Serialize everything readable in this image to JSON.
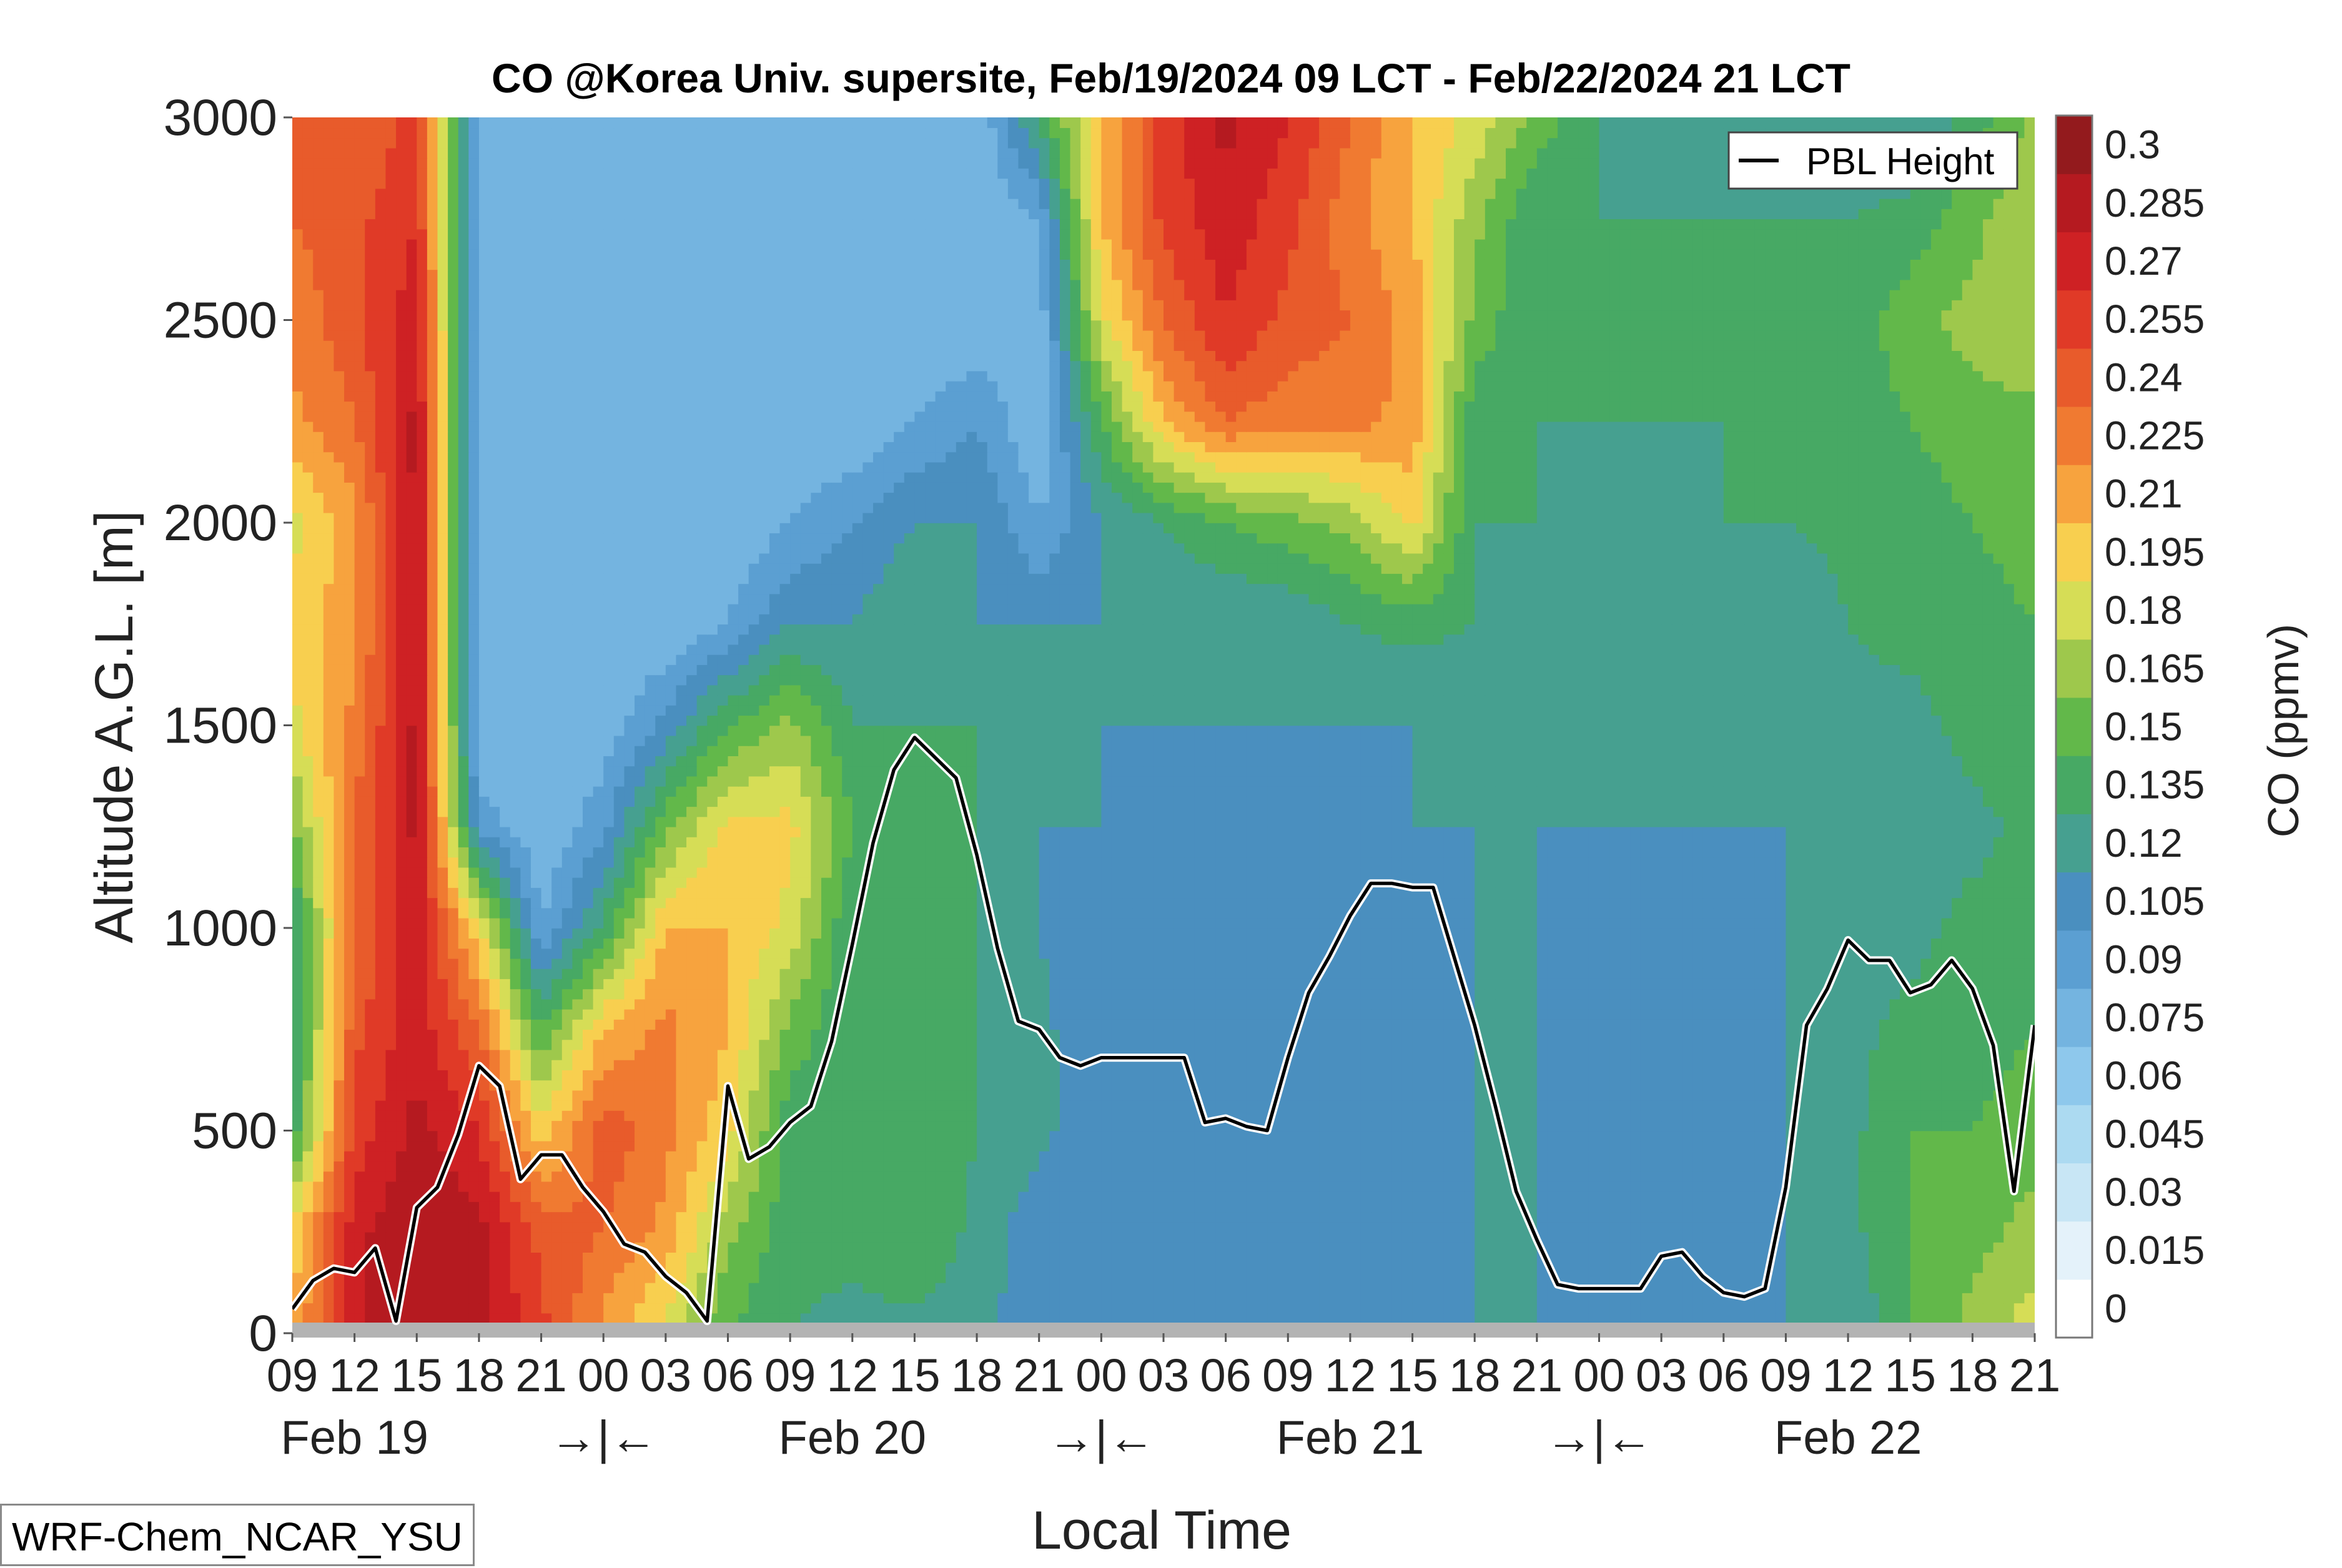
{
  "chart_data": {
    "type": "heatmap",
    "title": "CO @Korea Univ. supersite, Feb/19/2024 09 LCT - Feb/22/2024 21 LCT",
    "xlabel": "Local Time",
    "ylabel": "Altitude A.G.L. [m]",
    "ylim": [
      0,
      3000
    ],
    "yticks": [
      0,
      500,
      1000,
      1500,
      2000,
      2500,
      3000
    ],
    "xlim_hours": [
      0,
      84
    ],
    "hour_labels": [
      "09",
      "12",
      "15",
      "18",
      "21",
      "00",
      "03",
      "06",
      "09",
      "12",
      "15",
      "18",
      "21",
      "00",
      "03",
      "06",
      "09",
      "12",
      "15",
      "18",
      "21",
      "00",
      "03",
      "06",
      "09",
      "12",
      "15",
      "18",
      "21"
    ],
    "day_labels": [
      {
        "text": "Feb 19",
        "hour": 3
      },
      {
        "text": "→|←",
        "hour": 15
      },
      {
        "text": "Feb 20",
        "hour": 27
      },
      {
        "text": "→|←",
        "hour": 39
      },
      {
        "text": "Feb 21",
        "hour": 51
      },
      {
        "text": "→|←",
        "hour": 63
      },
      {
        "text": "Feb 22",
        "hour": 75
      }
    ],
    "colorbar": {
      "label": "CO (ppmv)",
      "levels": [
        "0",
        "0.015",
        "0.03",
        "0.045",
        "0.06",
        "0.075",
        "0.09",
        "0.105",
        "0.12",
        "0.135",
        "0.15",
        "0.165",
        "0.18",
        "0.195",
        "0.21",
        "0.225",
        "0.24",
        "0.255",
        "0.27",
        "0.285",
        "0.3"
      ],
      "colors": [
        "#ffffff",
        "#e4f2fa",
        "#c8e6f5",
        "#acdaf1",
        "#8ec8ec",
        "#74b4e0",
        "#5b9fd2",
        "#4a8fbf",
        "#46a090",
        "#47a964",
        "#62b84a",
        "#9ec84c",
        "#d6dd56",
        "#f8cf4f",
        "#f7a33e",
        "#f07a31",
        "#e85b2b",
        "#e03a27",
        "#ce2124",
        "#b51a20",
        "#931a1d"
      ]
    },
    "field": {
      "hours": [
        0,
        3,
        6,
        9,
        12,
        15,
        18,
        21,
        24,
        27,
        30,
        33,
        36,
        39,
        42,
        45,
        48,
        51,
        54,
        57,
        60,
        63,
        66,
        69,
        72,
        75,
        78,
        81,
        84
      ],
      "altitudes_m": [
        0,
        250,
        500,
        750,
        1000,
        1250,
        1500,
        1750,
        2000,
        2250,
        2500,
        2750,
        3000
      ],
      "co_ppmv": [
        [
          0.21,
          0.28,
          0.3,
          0.29,
          0.26,
          0.22,
          0.19,
          0.15,
          0.135,
          0.13,
          0.13,
          0.125,
          0.11,
          0.105,
          0.105,
          0.105,
          0.105,
          0.105,
          0.11,
          0.12,
          0.12,
          0.11,
          0.105,
          0.105,
          0.12,
          0.12,
          0.15,
          0.17,
          0.19
        ],
        [
          0.2,
          0.28,
          0.3,
          0.29,
          0.25,
          0.24,
          0.22,
          0.17,
          0.14,
          0.14,
          0.15,
          0.13,
          0.11,
          0.105,
          0.105,
          0.105,
          0.105,
          0.105,
          0.11,
          0.12,
          0.12,
          0.11,
          0.105,
          0.105,
          0.12,
          0.13,
          0.15,
          0.16,
          0.17
        ],
        [
          0.14,
          0.26,
          0.29,
          0.27,
          0.2,
          0.25,
          0.23,
          0.2,
          0.14,
          0.135,
          0.15,
          0.135,
          0.125,
          0.105,
          0.105,
          0.105,
          0.105,
          0.105,
          0.11,
          0.12,
          0.12,
          0.11,
          0.105,
          0.105,
          0.12,
          0.13,
          0.15,
          0.15,
          0.16
        ],
        [
          0.13,
          0.25,
          0.28,
          0.24,
          0.15,
          0.21,
          0.23,
          0.21,
          0.16,
          0.135,
          0.14,
          0.135,
          0.125,
          0.105,
          0.105,
          0.105,
          0.105,
          0.105,
          0.105,
          0.12,
          0.12,
          0.11,
          0.105,
          0.105,
          0.12,
          0.13,
          0.14,
          0.14,
          0.15
        ],
        [
          0.13,
          0.24,
          0.28,
          0.2,
          0.09,
          0.14,
          0.21,
          0.21,
          0.19,
          0.135,
          0.135,
          0.135,
          0.12,
          0.105,
          0.105,
          0.105,
          0.105,
          0.105,
          0.105,
          0.12,
          0.12,
          0.11,
          0.105,
          0.105,
          0.12,
          0.12,
          0.13,
          0.14,
          0.14
        ],
        [
          0.16,
          0.24,
          0.29,
          0.1,
          0.075,
          0.1,
          0.16,
          0.2,
          0.2,
          0.15,
          0.135,
          0.135,
          0.12,
          0.12,
          0.11,
          0.105,
          0.105,
          0.105,
          0.12,
          0.12,
          0.12,
          0.12,
          0.12,
          0.12,
          0.12,
          0.12,
          0.13,
          0.13,
          0.14
        ],
        [
          0.19,
          0.23,
          0.29,
          0.075,
          0.075,
          0.08,
          0.11,
          0.15,
          0.17,
          0.135,
          0.135,
          0.135,
          0.12,
          0.12,
          0.12,
          0.12,
          0.12,
          0.12,
          0.12,
          0.12,
          0.12,
          0.12,
          0.12,
          0.12,
          0.12,
          0.13,
          0.13,
          0.14,
          0.15
        ],
        [
          0.2,
          0.22,
          0.29,
          0.075,
          0.075,
          0.075,
          0.075,
          0.09,
          0.12,
          0.12,
          0.135,
          0.12,
          0.12,
          0.12,
          0.12,
          0.12,
          0.12,
          0.135,
          0.14,
          0.135,
          0.12,
          0.12,
          0.12,
          0.12,
          0.12,
          0.135,
          0.14,
          0.14,
          0.15
        ],
        [
          0.19,
          0.22,
          0.29,
          0.075,
          0.075,
          0.075,
          0.075,
          0.075,
          0.09,
          0.105,
          0.12,
          0.12,
          0.09,
          0.12,
          0.135,
          0.15,
          0.16,
          0.17,
          0.2,
          0.135,
          0.135,
          0.12,
          0.12,
          0.135,
          0.135,
          0.14,
          0.14,
          0.15,
          0.16
        ],
        [
          0.22,
          0.24,
          0.29,
          0.075,
          0.075,
          0.075,
          0.075,
          0.075,
          0.075,
          0.075,
          0.09,
          0.105,
          0.075,
          0.15,
          0.21,
          0.24,
          0.23,
          0.23,
          0.22,
          0.14,
          0.135,
          0.135,
          0.135,
          0.135,
          0.135,
          0.14,
          0.15,
          0.16,
          0.16
        ],
        [
          0.23,
          0.25,
          0.28,
          0.075,
          0.075,
          0.075,
          0.075,
          0.075,
          0.075,
          0.075,
          0.075,
          0.075,
          0.08,
          0.19,
          0.24,
          0.27,
          0.25,
          0.24,
          0.22,
          0.16,
          0.135,
          0.135,
          0.135,
          0.135,
          0.135,
          0.14,
          0.16,
          0.17,
          0.18
        ],
        [
          0.24,
          0.25,
          0.27,
          0.075,
          0.075,
          0.09,
          0.075,
          0.075,
          0.075,
          0.075,
          0.075,
          0.075,
          0.09,
          0.21,
          0.26,
          0.28,
          0.26,
          0.23,
          0.21,
          0.17,
          0.135,
          0.135,
          0.135,
          0.135,
          0.135,
          0.135,
          0.14,
          0.16,
          0.18
        ],
        [
          0.24,
          0.24,
          0.26,
          0.075,
          0.075,
          0.09,
          0.09,
          0.075,
          0.075,
          0.075,
          0.075,
          0.075,
          0.14,
          0.21,
          0.26,
          0.29,
          0.27,
          0.24,
          0.21,
          0.19,
          0.16,
          0.135,
          0.12,
          0.12,
          0.12,
          0.12,
          0.12,
          0.14,
          0.17
        ]
      ]
    },
    "series": [
      {
        "name": "PBL Height",
        "color": "#000000",
        "x_hours": [
          0,
          1,
          2,
          3,
          4,
          5,
          6,
          7,
          8,
          9,
          10,
          11,
          12,
          13,
          14,
          15,
          16,
          17,
          18,
          19,
          20,
          21,
          22,
          23,
          24,
          25,
          26,
          27,
          28,
          29,
          30,
          31,
          32,
          33,
          34,
          35,
          36,
          37,
          38,
          39,
          40,
          41,
          42,
          43,
          44,
          45,
          46,
          47,
          48,
          49,
          50,
          51,
          52,
          53,
          54,
          55,
          56,
          57,
          58,
          59,
          60,
          61,
          62,
          63,
          64,
          65,
          66,
          67,
          68,
          69,
          70,
          71,
          72,
          73,
          74,
          75,
          76,
          77,
          78,
          79,
          80,
          81,
          82,
          83,
          84
        ],
        "y_m": [
          60,
          130,
          160,
          150,
          210,
          30,
          310,
          360,
          490,
          660,
          610,
          380,
          440,
          440,
          360,
          300,
          220,
          200,
          140,
          100,
          30,
          610,
          430,
          460,
          520,
          560,
          720,
          960,
          1210,
          1390,
          1470,
          1420,
          1370,
          1180,
          950,
          770,
          750,
          680,
          660,
          680,
          680,
          680,
          680,
          680,
          520,
          530,
          510,
          500,
          680,
          840,
          930,
          1030,
          1110,
          1110,
          1100,
          1100,
          930,
          760,
          560,
          350,
          230,
          120,
          110,
          110,
          110,
          110,
          190,
          200,
          140,
          100,
          90,
          110,
          360,
          760,
          850,
          970,
          920,
          920,
          840,
          860,
          920,
          850,
          710,
          350,
          760
        ]
      }
    ],
    "legend": {
      "position": "top-right",
      "entries": [
        "PBL Height"
      ]
    }
  },
  "model_tag": "WRF-Chem_NCAR_YSU"
}
